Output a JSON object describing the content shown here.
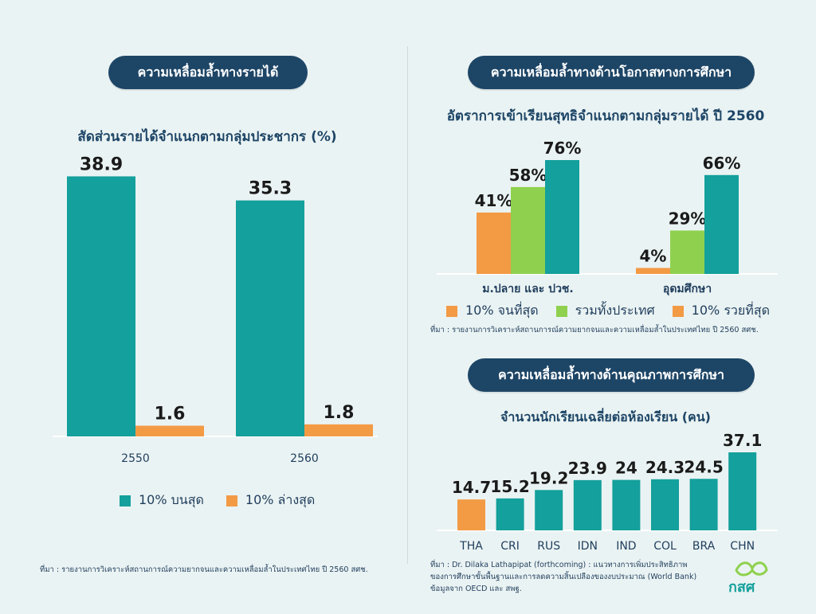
{
  "colors": {
    "teal": "#14a09c",
    "orange": "#f39a45",
    "green": "#8fd14f",
    "navy": "#1d4566"
  },
  "left": {
    "heading": "ความเหลื่อมล้ำทางรายได้",
    "subtitle": "สัดส่วนรายได้จำแนกตามกลุ่มประชากร (%)",
    "legend": [
      "10% บนสุด",
      "10% ล่างสุด"
    ],
    "source": "ที่มา : รายงานการวิเคราะห์สถานการณ์ความยากจนและความเหลื่อมล้ำในประเทศไทย ปี 2560 สศช."
  },
  "right_top": {
    "heading": "ความเหลื่อมล้ำทางด้านโอกาสทางการศึกษา",
    "subtitle": "อัตราการเข้าเรียนสุทธิจำแนกตามกลุ่มรายได้ ปี 2560",
    "legend": [
      "10% จนที่สุด",
      "รวมทั้งประเทศ",
      "10% รวยที่สุด"
    ],
    "source": "ที่มา : รายงานการวิเคราะห์สถานการณ์ความยากจนและความเหลื่อมล้ำในประเทศไทย ปี 2560 สศช."
  },
  "right_bottom": {
    "heading": "ความเหลื่อมล้ำทางด้านคุณภาพการศึกษา",
    "subtitle": "จำนวนนักเรียนเฉลี่ยต่อห้องเรียน (คน)",
    "source_lines": [
      "ที่มา : Dr. Dilaka Lathapipat (forthcoming) : แนวทางการเพิ่มประสิทธิภาพ",
      "ของการศึกษาขั้นพื้นฐานและการลดความสิ้นเปลืองของงบประมาณ (World Bank)",
      "ข้อมูลจาก OECD และ สพฐ."
    ]
  },
  "logo_text": "กสศ",
  "chart_data": [
    {
      "type": "bar",
      "categories": [
        "2550",
        "2560"
      ],
      "series": [
        {
          "name": "10% บนสุด",
          "values": [
            38.9,
            35.3
          ],
          "labels": [
            "38.9",
            "35.3"
          ]
        },
        {
          "name": "10% ล่างสุด",
          "values": [
            1.6,
            1.8
          ],
          "labels": [
            "1.6",
            "1.8"
          ]
        }
      ],
      "ylim": [
        0,
        40
      ]
    },
    {
      "type": "bar",
      "categories": [
        "ม.ปลาย และ ปวช.",
        "อุดมศึกษา"
      ],
      "series": [
        {
          "name": "10% จนที่สุด",
          "values": [
            41,
            4
          ],
          "labels": [
            "41%",
            "4%"
          ]
        },
        {
          "name": "รวมทั้งประเทศ",
          "values": [
            58,
            29
          ],
          "labels": [
            "58%",
            "29%"
          ]
        },
        {
          "name": "10% รวยที่สุด",
          "values": [
            76,
            66
          ],
          "labels": [
            "76%",
            "66%"
          ]
        }
      ],
      "ylim": [
        0,
        80
      ]
    },
    {
      "type": "bar",
      "categories": [
        "THA",
        "CRI",
        "RUS",
        "IDN",
        "IND",
        "COL",
        "BRA",
        "CHN"
      ],
      "values": [
        14.7,
        15.2,
        19.2,
        23.9,
        24,
        24.3,
        24.5,
        37.1
      ],
      "labels": [
        "14.7",
        "15.2",
        "19.2",
        "23.9",
        "24",
        "24.3",
        "24.5",
        "37.1"
      ],
      "highlight": "THA",
      "ylim": [
        0,
        40
      ]
    }
  ]
}
